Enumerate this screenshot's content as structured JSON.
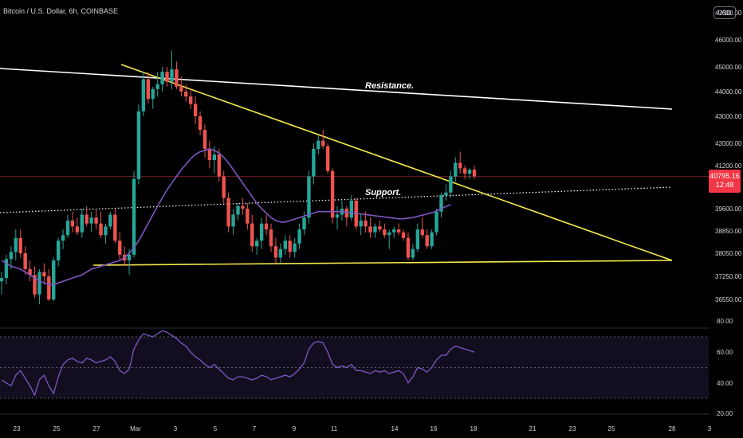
{
  "header": {
    "symbol": "Bitcoin / U.S. Dollar, 6h, COINBASE"
  },
  "currency_badge": "USD",
  "last_price": {
    "value": "40795.16",
    "timer": "12:48",
    "color": "#f23645"
  },
  "colors": {
    "up": "#26a69a",
    "down": "#ef5350",
    "ma": "#7e57c2",
    "rsi": "#7e57c2",
    "triangle": "#f5e94a",
    "resistance": "#ffffff"
  },
  "chart_data": [
    {
      "type": "candlestick",
      "ylim": [
        36250,
        47350
      ],
      "y_ticks": [
        "47000.00",
        "46000.00",
        "45000.00",
        "44000.00",
        "43000.00",
        "42000.00",
        "41200.00",
        "39600.00",
        "38850.00",
        "38050.00",
        "37250.00",
        "36550.00"
      ],
      "x_ticks": [
        "23",
        "25",
        "27",
        "Mar",
        "3",
        "5",
        "7",
        "9",
        "11",
        "14",
        "16",
        "18",
        "21",
        "23",
        "25",
        "28",
        "3"
      ],
      "candles_ohlc": [
        [
          37100,
          37400,
          36700,
          37200
        ],
        [
          37200,
          38000,
          37000,
          37850
        ],
        [
          37850,
          38300,
          37500,
          38100
        ],
        [
          38100,
          38900,
          37800,
          38600
        ],
        [
          38600,
          38900,
          37900,
          38050
        ],
        [
          38050,
          38300,
          37300,
          37500
        ],
        [
          37500,
          37800,
          37100,
          37300
        ],
        [
          37300,
          37600,
          36600,
          36700
        ],
        [
          36700,
          37500,
          36400,
          37400
        ],
        [
          37400,
          37700,
          37000,
          37250
        ],
        [
          37250,
          37500,
          36500,
          36550
        ],
        [
          36550,
          37900,
          36500,
          37800
        ],
        [
          37800,
          38600,
          37600,
          38500
        ],
        [
          38500,
          38900,
          38200,
          38700
        ],
        [
          38700,
          39400,
          38600,
          39200
        ],
        [
          39200,
          39500,
          38800,
          39000
        ],
        [
          39000,
          39300,
          38700,
          38800
        ],
        [
          38800,
          39600,
          38600,
          39400
        ],
        [
          39400,
          39700,
          39000,
          39100
        ],
        [
          39100,
          39500,
          38800,
          39300
        ],
        [
          39300,
          39600,
          38900,
          39100
        ],
        [
          39100,
          39500,
          38600,
          38700
        ],
        [
          38700,
          39100,
          38400,
          39000
        ],
        [
          39000,
          39500,
          38900,
          39400
        ],
        [
          39400,
          39600,
          38400,
          38500
        ],
        [
          38500,
          38800,
          37800,
          38000
        ],
        [
          38000,
          38300,
          37600,
          37800
        ],
        [
          37800,
          38200,
          37300,
          38000
        ],
        [
          38000,
          41000,
          37900,
          40700
        ],
        [
          40700,
          43500,
          40500,
          43200
        ],
        [
          43200,
          44800,
          43000,
          44500
        ],
        [
          44500,
          44800,
          43500,
          43700
        ],
        [
          43700,
          44200,
          43300,
          44100
        ],
        [
          44100,
          44800,
          43800,
          44300
        ],
        [
          44300,
          45000,
          44000,
          44800
        ],
        [
          44800,
          45000,
          44200,
          44400
        ],
        [
          44400,
          45600,
          44100,
          44900
        ],
        [
          44900,
          45200,
          44100,
          44200
        ],
        [
          44200,
          44600,
          43800,
          44000
        ],
        [
          44000,
          44300,
          43600,
          43800
        ],
        [
          43800,
          44100,
          43300,
          43500
        ],
        [
          43500,
          43800,
          42700,
          43000
        ],
        [
          43000,
          43200,
          42300,
          42500
        ],
        [
          42500,
          42700,
          41500,
          41800
        ],
        [
          41800,
          42100,
          41100,
          41400
        ],
        [
          41400,
          41900,
          40900,
          41600
        ],
        [
          41600,
          41800,
          40600,
          40800
        ],
        [
          40800,
          41000,
          39800,
          40000
        ],
        [
          40000,
          40200,
          38800,
          39000
        ],
        [
          39000,
          39600,
          38700,
          39400
        ],
        [
          39400,
          39800,
          39200,
          39700
        ],
        [
          39700,
          40000,
          39400,
          39600
        ],
        [
          39600,
          39800,
          38900,
          39100
        ],
        [
          39100,
          39400,
          38100,
          38300
        ],
        [
          38300,
          38600,
          38000,
          38500
        ],
        [
          38500,
          39300,
          38200,
          39100
        ],
        [
          39100,
          39400,
          38700,
          38900
        ],
        [
          38900,
          39100,
          38100,
          38300
        ],
        [
          38300,
          38600,
          37700,
          37900
        ],
        [
          37900,
          38400,
          37700,
          38200
        ],
        [
          38200,
          38700,
          38000,
          38500
        ],
        [
          38500,
          38700,
          37900,
          38100
        ],
        [
          38100,
          38600,
          37900,
          38400
        ],
        [
          38400,
          39100,
          38200,
          38900
        ],
        [
          38900,
          39500,
          38700,
          39300
        ],
        [
          39300,
          41000,
          39100,
          40800
        ],
        [
          40800,
          42000,
          40500,
          41800
        ],
        [
          41800,
          42300,
          41600,
          42100
        ],
        [
          42100,
          42500,
          41800,
          41900
        ],
        [
          41900,
          42000,
          40900,
          41000
        ],
        [
          41000,
          41100,
          39100,
          39300
        ],
        [
          39300,
          39700,
          38900,
          39400
        ],
        [
          39400,
          39900,
          39200,
          39600
        ],
        [
          39600,
          39700,
          39000,
          39300
        ],
        [
          39300,
          40100,
          39200,
          39900
        ],
        [
          39900,
          40000,
          38900,
          39000
        ],
        [
          39000,
          39400,
          38700,
          39200
        ],
        [
          39200,
          39500,
          38800,
          39000
        ],
        [
          39000,
          39300,
          38600,
          38800
        ],
        [
          38800,
          39100,
          38600,
          39000
        ],
        [
          39000,
          39200,
          38800,
          38900
        ],
        [
          38900,
          39100,
          38600,
          38700
        ],
        [
          38700,
          38900,
          38200,
          38800
        ],
        [
          38800,
          39000,
          38600,
          38900
        ],
        [
          38900,
          39100,
          38700,
          38800
        ],
        [
          38800,
          38900,
          38500,
          38600
        ],
        [
          38600,
          38800,
          37800,
          37900
        ],
        [
          37900,
          38400,
          37800,
          38200
        ],
        [
          38200,
          39100,
          38100,
          38900
        ],
        [
          38900,
          39300,
          38600,
          38700
        ],
        [
          38700,
          38900,
          38200,
          38300
        ],
        [
          38300,
          38900,
          38200,
          38800
        ],
        [
          38800,
          39600,
          38700,
          39500
        ],
        [
          39500,
          40200,
          39300,
          40100
        ],
        [
          40100,
          40500,
          39900,
          40200
        ],
        [
          40200,
          41000,
          40000,
          40800
        ],
        [
          40800,
          41500,
          40600,
          41300
        ],
        [
          41300,
          41700,
          40900,
          41100
        ],
        [
          41100,
          41200,
          40700,
          40900
        ],
        [
          40900,
          41100,
          40700,
          41050
        ],
        [
          41050,
          41200,
          40700,
          40800
        ]
      ],
      "moving_average": {
        "color": "#7e57c2",
        "values": [
          37800,
          37700,
          37600,
          37550,
          37500,
          37400,
          37300,
          37200,
          37100,
          37050,
          37000,
          37000,
          37050,
          37100,
          37150,
          37200,
          37250,
          37300,
          37400,
          37500,
          37550,
          37600,
          37650,
          37700,
          37750,
          37800,
          37900,
          38050,
          38250,
          38500,
          38800,
          39100,
          39400,
          39700,
          40000,
          40300,
          40550,
          40800,
          41050,
          41250,
          41450,
          41600,
          41700,
          41750,
          41800,
          41750,
          41650,
          41500,
          41300,
          41050,
          40800,
          40550,
          40300,
          40050,
          39800,
          39600,
          39450,
          39300,
          39200,
          39150,
          39150,
          39200,
          39250,
          39300,
          39350,
          39400,
          39450,
          39500,
          39500,
          39500,
          39500,
          39500,
          39500,
          39480,
          39460,
          39440,
          39420,
          39400,
          39380,
          39360,
          39340,
          39320,
          39300,
          39280,
          39260,
          39260,
          39280,
          39300,
          39340,
          39380,
          39420,
          39460,
          39520,
          39600,
          39680,
          39750
        ]
      },
      "annotations": [
        {
          "text": "Resistance."
        },
        {
          "text": "Support."
        }
      ]
    },
    {
      "type": "line",
      "name": "rsi",
      "ylim": [
        15,
        85
      ],
      "y_ticks": [
        "80.00",
        "60.00",
        "40.00",
        "20.00"
      ],
      "reference_lines": [
        70,
        50,
        30
      ],
      "values": [
        42,
        40,
        38,
        45,
        48,
        43,
        38,
        32,
        42,
        45,
        38,
        33,
        44,
        52,
        55,
        56,
        54,
        53,
        56,
        55,
        53,
        54,
        55,
        57,
        54,
        48,
        46,
        49,
        62,
        68,
        72,
        71,
        70,
        72,
        74,
        73,
        71,
        69,
        66,
        64,
        60,
        57,
        55,
        52,
        50,
        52,
        49,
        46,
        43,
        42,
        44,
        44,
        43,
        42,
        43,
        45,
        44,
        42,
        43,
        44,
        45,
        44,
        46,
        49,
        53,
        62,
        66,
        67,
        66,
        60,
        52,
        50,
        51,
        50,
        52,
        48,
        48,
        47,
        46,
        48,
        47,
        48,
        46,
        47,
        48,
        46,
        40,
        44,
        50,
        49,
        47,
        50,
        55,
        58,
        58,
        62,
        64,
        63,
        62,
        61,
        60
      ]
    }
  ]
}
